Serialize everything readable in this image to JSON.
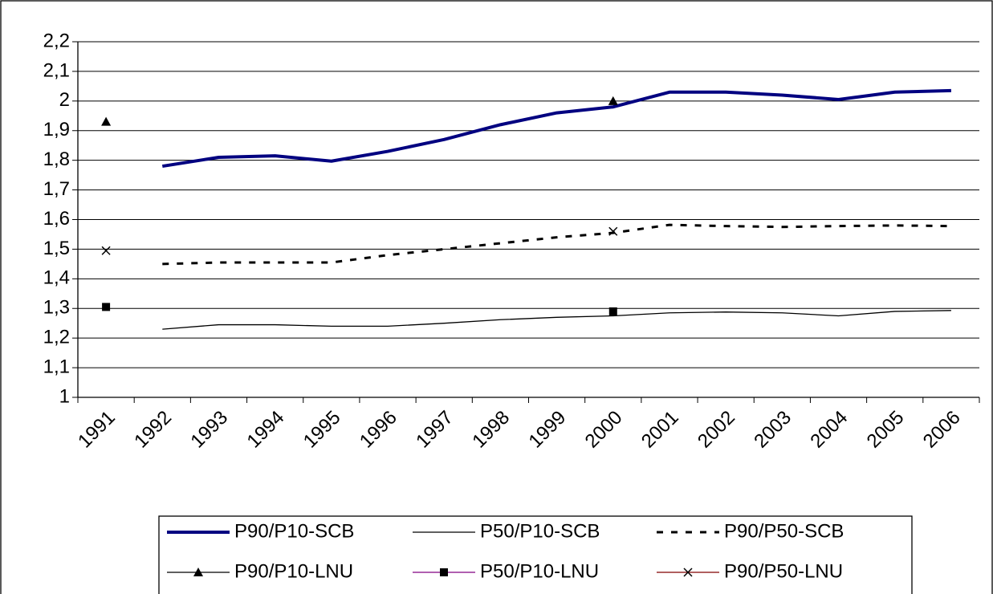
{
  "chart_data": {
    "type": "line",
    "categories": [
      "1991",
      "1992",
      "1993",
      "1994",
      "1995",
      "1996",
      "1997",
      "1998",
      "1999",
      "2000",
      "2001",
      "2002",
      "2003",
      "2004",
      "2005",
      "2006"
    ],
    "ylim": [
      1,
      2.2
    ],
    "yticks": [
      1,
      {
        "value": 1.1,
        "label": "1,1"
      },
      {
        "value": 1.2,
        "label": "1,2"
      },
      {
        "value": 1.3,
        "label": "1,3"
      },
      {
        "value": 1.4,
        "label": "1,4"
      },
      {
        "value": 1.5,
        "label": "1,5"
      },
      {
        "value": 1.6,
        "label": "1,6"
      },
      {
        "value": 1.7,
        "label": "1,7"
      },
      {
        "value": 1.8,
        "label": "1,8"
      },
      {
        "value": 1.9,
        "label": "1,9"
      },
      2,
      {
        "value": 2.1,
        "label": "2,1"
      },
      {
        "value": 2.2,
        "label": "2,2"
      }
    ],
    "grid": true,
    "legend": "bottom",
    "series": [
      {
        "name": "P90/P10-SCB",
        "color": "#000080",
        "line_width": 4,
        "dash": false,
        "marker": "none",
        "values": [
          null,
          1.78,
          1.81,
          1.815,
          1.797,
          1.83,
          1.87,
          1.92,
          1.96,
          1.98,
          2.03,
          2.03,
          2.02,
          2.005,
          2.03,
          2.035
        ]
      },
      {
        "name": "P50/P10-SCB",
        "color": "#000000",
        "line_width": 1.3,
        "dash": false,
        "marker": "none",
        "values": [
          null,
          1.23,
          1.245,
          1.245,
          1.24,
          1.24,
          1.25,
          1.262,
          1.27,
          1.275,
          1.285,
          1.288,
          1.285,
          1.275,
          1.29,
          1.293
        ]
      },
      {
        "name": "P90/P50-SCB",
        "color": "#000000",
        "line_width": 3,
        "dash": true,
        "marker": "none",
        "values": [
          null,
          1.45,
          1.455,
          1.455,
          1.455,
          1.48,
          1.5,
          1.52,
          1.54,
          1.555,
          1.582,
          1.578,
          1.575,
          1.578,
          1.58,
          1.578
        ]
      },
      {
        "name": "P90/P10-LNU",
        "color": "#000000",
        "line_width": 1.3,
        "dash": false,
        "marker": "triangle",
        "values": [
          1.93,
          null,
          null,
          null,
          null,
          null,
          null,
          null,
          null,
          2.0,
          null,
          null,
          null,
          null,
          null,
          null
        ]
      },
      {
        "name": "P50/P10-LNU",
        "color": "#800080",
        "line_width": 1.3,
        "dash": false,
        "marker": "square",
        "values": [
          1.305,
          null,
          null,
          null,
          null,
          null,
          null,
          null,
          null,
          1.29,
          null,
          null,
          null,
          null,
          null,
          null
        ]
      },
      {
        "name": "P90/P50-LNU",
        "color": "#800000",
        "line_width": 1.3,
        "dash": false,
        "marker": "x",
        "values": [
          1.495,
          null,
          null,
          null,
          null,
          null,
          null,
          null,
          null,
          1.56,
          null,
          null,
          null,
          null,
          null,
          null
        ]
      }
    ]
  }
}
